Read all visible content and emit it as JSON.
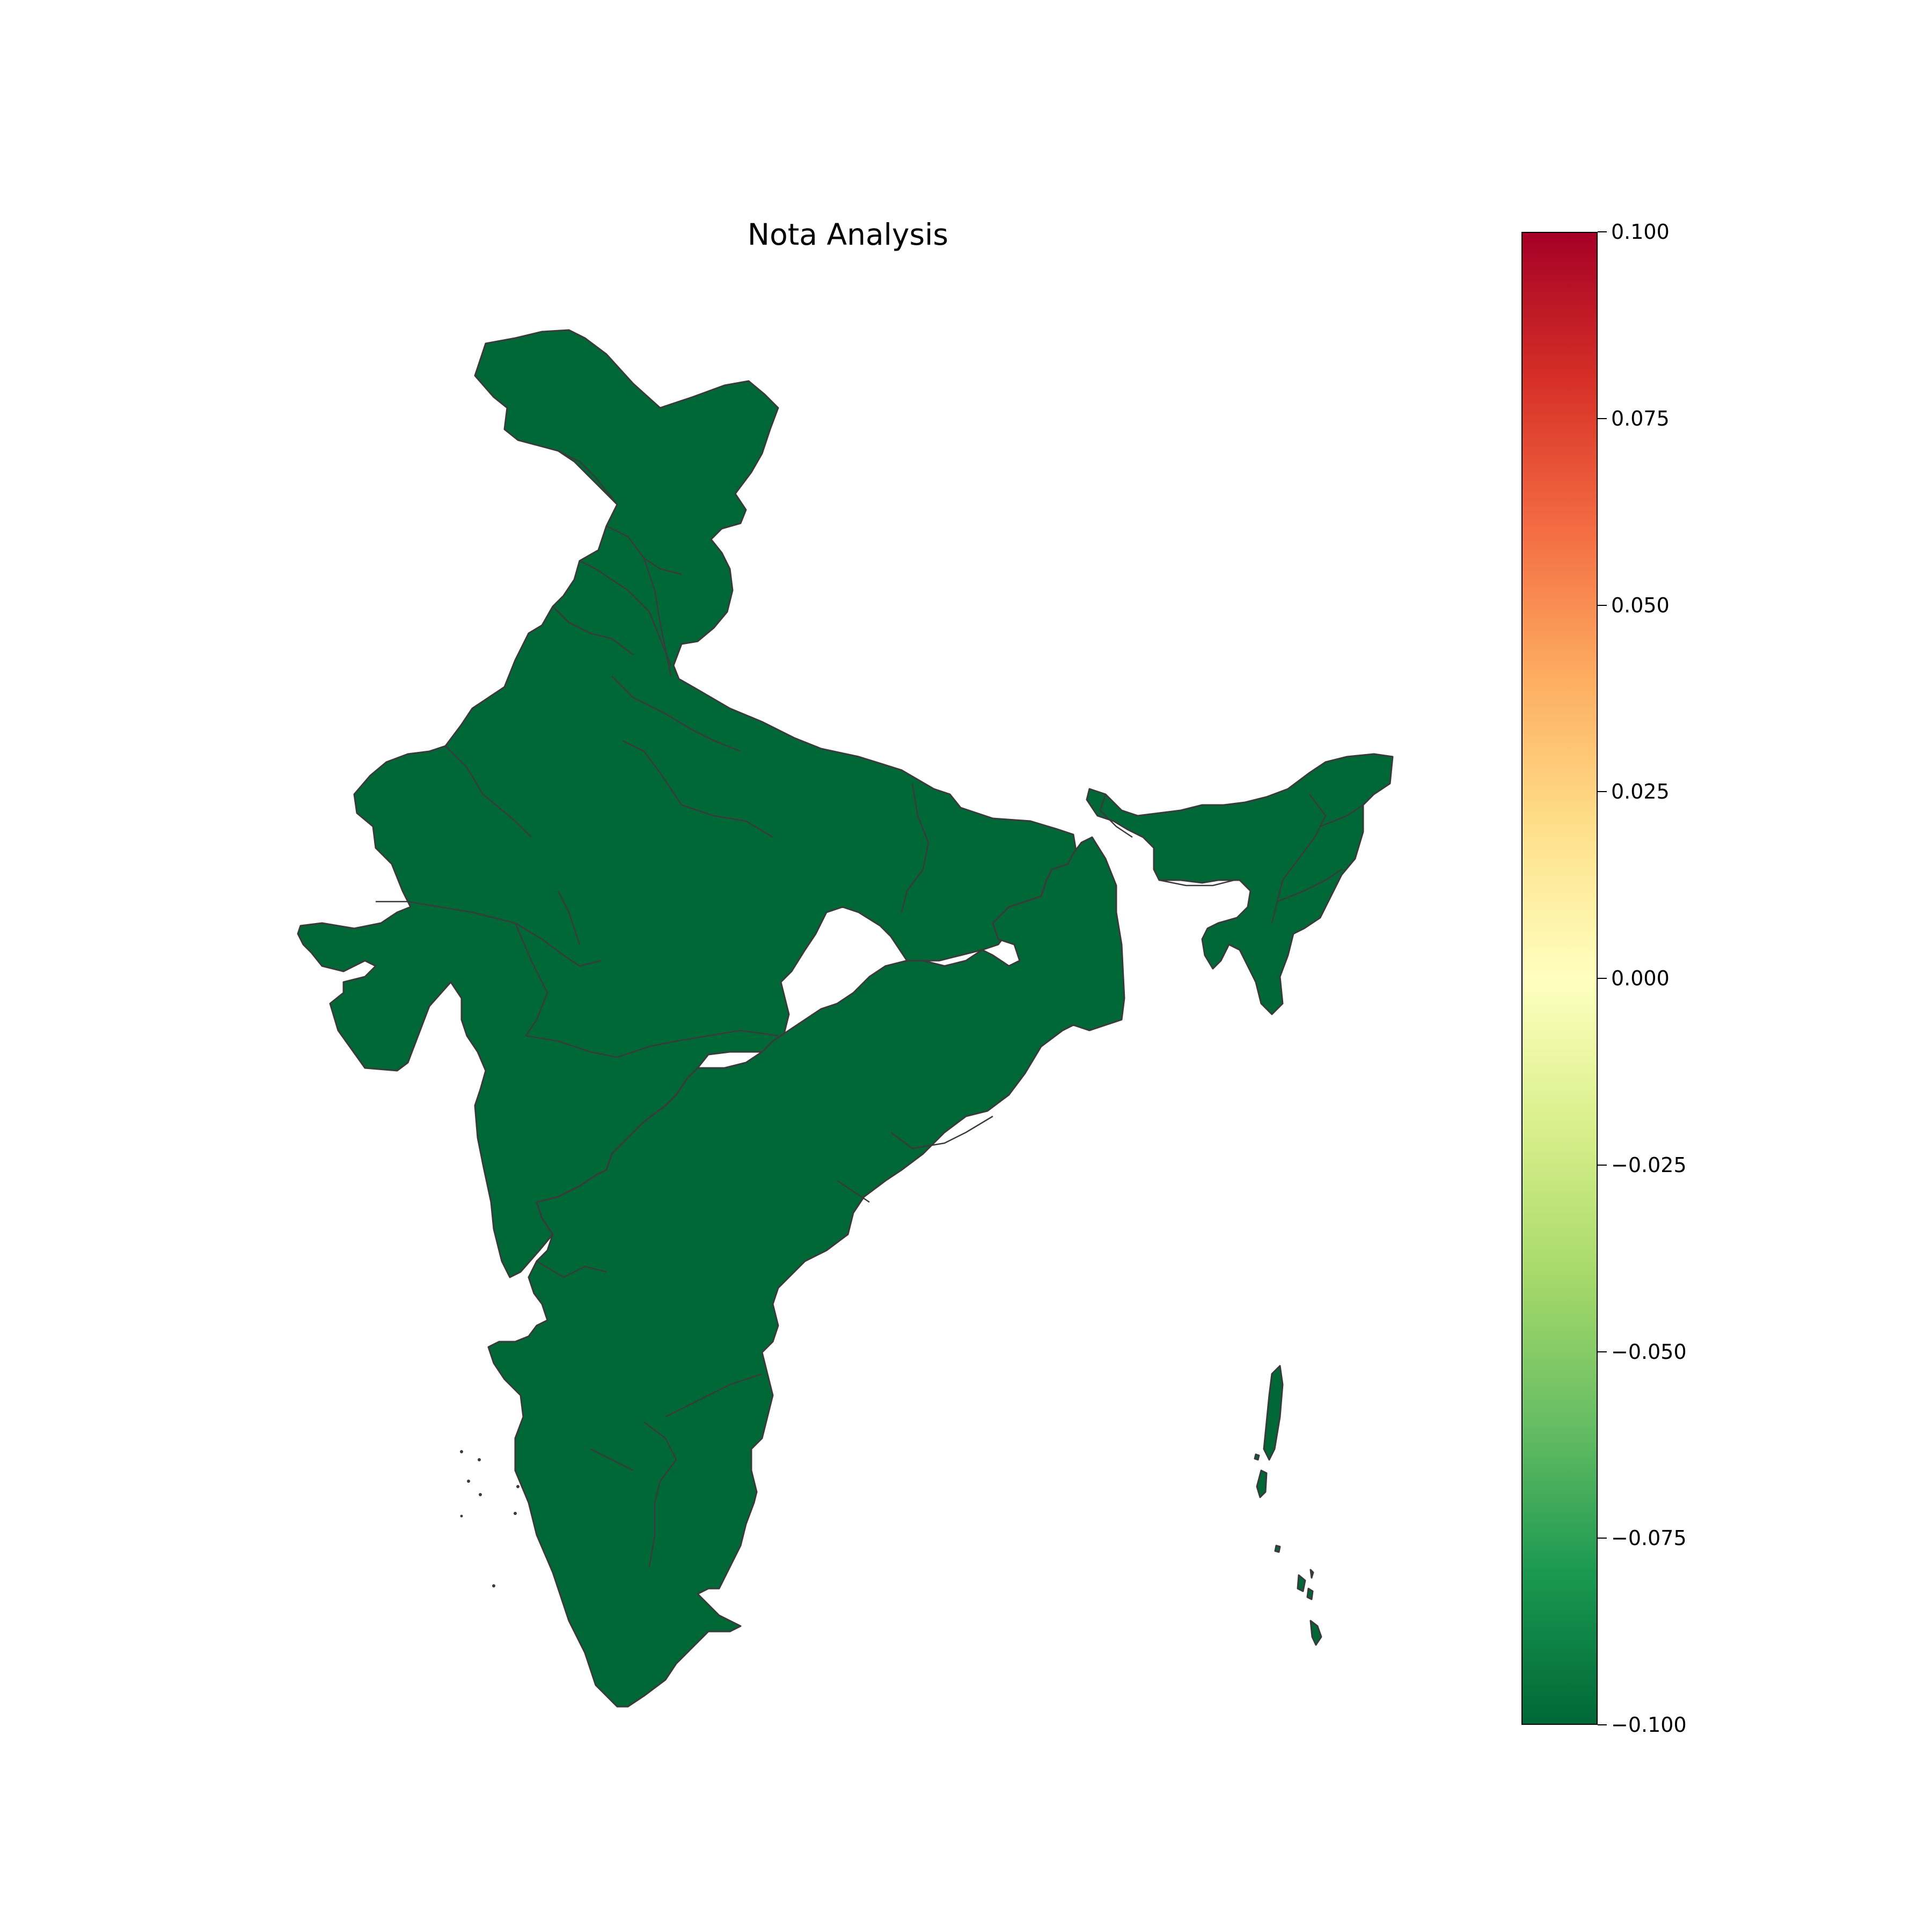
{
  "title": "Nota Analysis",
  "colormap": "RdYlGn_r",
  "colors": {
    "map_fill": "#006837",
    "region_border": "#3a3a3a",
    "colorbar_stops": [
      "#006837",
      "#1a9850",
      "#66bd63",
      "#a6d96a",
      "#d9ef8b",
      "#ffffbf",
      "#fee08b",
      "#fdae61",
      "#f46d43",
      "#d73027",
      "#a50026"
    ]
  },
  "colorbar": {
    "min": -0.1,
    "max": 0.1,
    "ticks": [
      {
        "value": 0.1,
        "label": "0.100"
      },
      {
        "value": 0.075,
        "label": "0.075"
      },
      {
        "value": 0.05,
        "label": "0.050"
      },
      {
        "value": 0.025,
        "label": "0.025"
      },
      {
        "value": 0.0,
        "label": "0.000"
      },
      {
        "value": -0.025,
        "label": "−0.025"
      },
      {
        "value": -0.05,
        "label": "−0.050"
      },
      {
        "value": -0.075,
        "label": "−0.075"
      },
      {
        "value": -0.1,
        "label": "−0.100"
      }
    ]
  },
  "chart_data": {
    "type": "choropleth",
    "title": "Nota Analysis",
    "region_value_shown": -0.1,
    "vmin": -0.1,
    "vmax": 0.1
  }
}
